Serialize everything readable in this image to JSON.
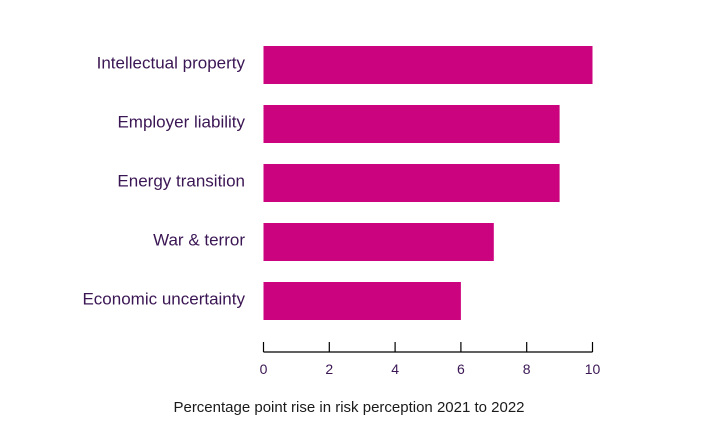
{
  "chart_data": {
    "type": "bar",
    "orientation": "horizontal",
    "categories": [
      "Intellectual property",
      "Employer liability",
      "Energy transition",
      "War & terror",
      "Economic uncertainty"
    ],
    "values": [
      10,
      9,
      9,
      7,
      6
    ],
    "title": "",
    "xlabel": "Percentage point rise in risk perception 2021 to 2022",
    "ylabel": "",
    "xlim": [
      0,
      10
    ],
    "ticks": [
      "0",
      "2",
      "4",
      "6",
      "8",
      "10"
    ],
    "grid": false,
    "legend": "none",
    "colors": {
      "bar": "#cc037e",
      "label": "#3b1654",
      "axis": "#000000",
      "xlabel_text": "#1a1a1a"
    }
  }
}
